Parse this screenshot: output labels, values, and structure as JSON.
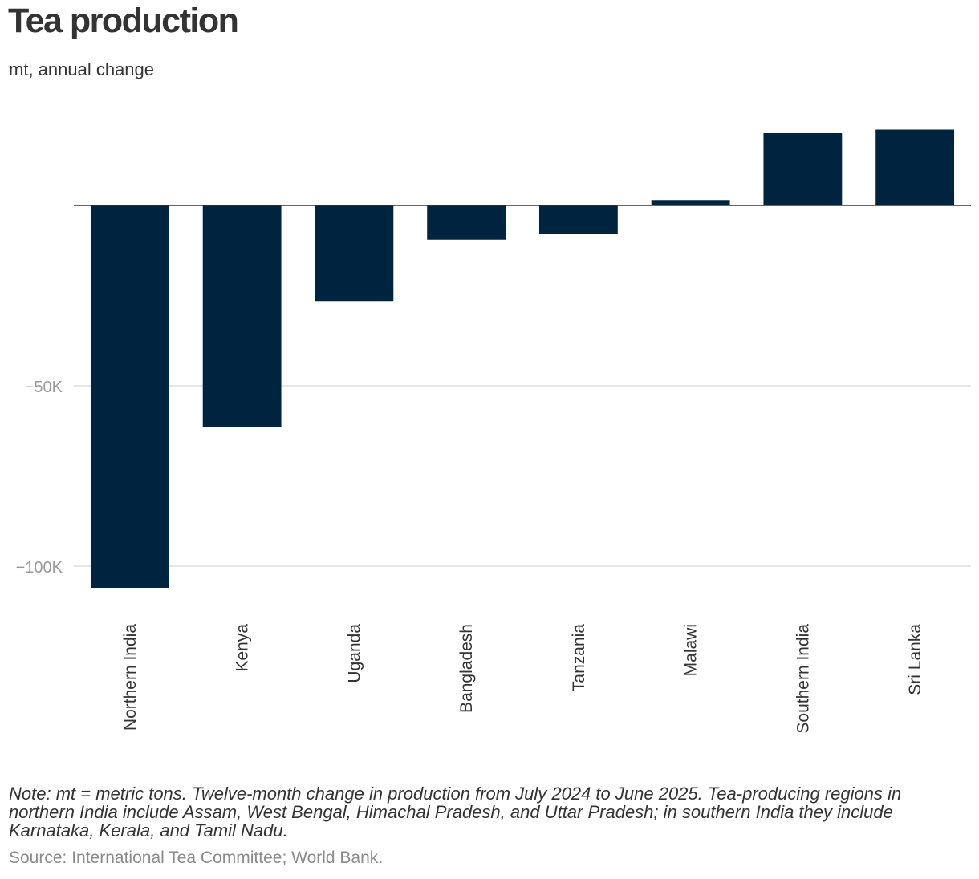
{
  "chart_data": {
    "type": "bar",
    "title": "Tea production",
    "subtitle": "mt, annual change",
    "categories": [
      "Northern India",
      "Kenya",
      "Uganda",
      "Bangladesh",
      "Tanzania",
      "Malawi",
      "Southern India",
      "Sri Lanka"
    ],
    "values": [
      -106000,
      -61500,
      -26500,
      -9500,
      -8000,
      1500,
      20000,
      21000
    ],
    "y_ticks": [
      {
        "value": -50000,
        "label": "−50K"
      },
      {
        "value": -100000,
        "label": "−100K"
      }
    ],
    "ylim": [
      -112000,
      28000
    ],
    "xlabel": "",
    "ylabel": "",
    "bar_color": "#00233f",
    "grid": true
  },
  "footer": {
    "note": "Note: mt = metric tons. Twelve-month change in production from July 2024 to June 2025. Tea-producing regions in northern India include Assam, West Bengal, Himachal Pradesh, and Uttar Pradesh; in southern India they include Karnataka, Kerala, and Tamil Nadu.",
    "source": "Source: International Tea Committee; World Bank."
  }
}
